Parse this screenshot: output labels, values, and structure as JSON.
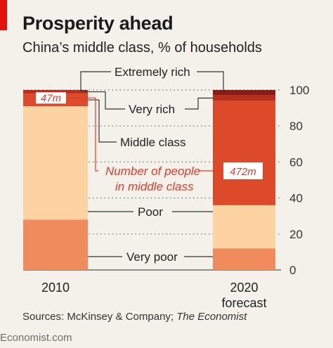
{
  "title": "Prosperity ahead",
  "subtitle": "China’s middle class, % of households",
  "source_prefix": "Sources: McKinsey & Company; ",
  "source_italic": "The Economist",
  "footer": "Economist.com",
  "colors": {
    "accent": "#e3120b",
    "very_poor": "#ef8b5c",
    "poor": "#fcd3a1",
    "middle_class": "#dd4a2a",
    "very_rich": "#b82f1e",
    "extremely_rich": "#8a1c18",
    "annotation_red": "#e03a2a",
    "text": "#222222"
  },
  "chart_data": {
    "type": "bar",
    "stacked": true,
    "ylim": [
      0,
      100
    ],
    "yticks": [
      "0",
      "20",
      "40",
      "60",
      "80",
      "100"
    ],
    "grid": true,
    "categories": [
      "2010",
      "2020"
    ],
    "category_sublabels": [
      "",
      "forecast"
    ],
    "series": [
      {
        "name": "Very poor",
        "color_key": "very_poor",
        "values": [
          28,
          12
        ]
      },
      {
        "name": "Poor",
        "color_key": "poor",
        "values": [
          63,
          24
        ]
      },
      {
        "name": "Middle class",
        "color_key": "middle_class",
        "values": [
          7,
          58
        ]
      },
      {
        "name": "Very rich",
        "color_key": "very_rich",
        "values": [
          2,
          3
        ]
      },
      {
        "name": "Extremely rich",
        "color_key": "extremely_rich",
        "values": [
          0,
          3
        ]
      }
    ],
    "middle_class_people": [
      "47m",
      "472m"
    ],
    "annotation": [
      "Number of people",
      "in middle class"
    ]
  }
}
